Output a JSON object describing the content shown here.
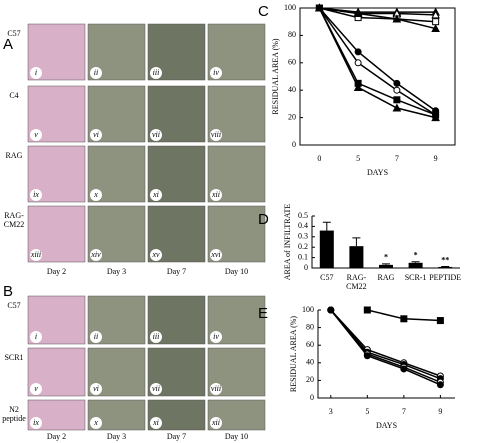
{
  "panel_a": {
    "letter": "A",
    "columns": [
      "Day 2",
      "Day 3",
      "Day 7",
      "Day 10"
    ],
    "rows": [
      {
        "label": [
          "C57"
        ],
        "numerals": [
          "i",
          "ii",
          "iii",
          "iv"
        ]
      },
      {
        "label": [
          "C4"
        ],
        "numerals": [
          "v",
          "vi",
          "vii",
          "viii"
        ]
      },
      {
        "label": [
          "RAG"
        ],
        "numerals": [
          "ix",
          "x",
          "xi",
          "xii"
        ]
      },
      {
        "label": [
          "RAG-",
          "CM22"
        ],
        "numerals": [
          "xiii",
          "xiv",
          "xv",
          "xvi"
        ]
      }
    ]
  },
  "panel_b": {
    "letter": "B",
    "columns": [
      "Day 2",
      "Day 3",
      "Day 7",
      "Day 10"
    ],
    "rows": [
      {
        "label": [
          "C57"
        ],
        "numerals": [
          "i",
          "ii",
          "iii",
          "iv"
        ]
      },
      {
        "label": [
          "SCR1"
        ],
        "numerals": [
          "v",
          "vi",
          "vii",
          "viii"
        ]
      },
      {
        "label": [
          "N2",
          "peptide"
        ],
        "numerals": [
          "ix",
          "x",
          "xi",
          "xii"
        ]
      }
    ]
  },
  "chart_data": [
    {
      "type": "line",
      "letter": "C",
      "y_label": "RESIDUAL AREA (%)",
      "x_label": "DAYS",
      "categories": [
        "0",
        "5",
        "7",
        "9"
      ],
      "ylim": [
        0,
        100
      ],
      "yticks": [
        0,
        20,
        40,
        60,
        80,
        100
      ],
      "series": [
        {
          "color": "#000000",
          "marker": "triangle",
          "values": [
            100,
            97,
            97,
            97
          ]
        },
        {
          "color": "#000000",
          "marker": "triangle-open",
          "values": [
            100,
            96,
            96,
            95
          ]
        },
        {
          "color": "#000000",
          "marker": "square-open",
          "values": [
            100,
            93,
            92,
            90
          ]
        },
        {
          "color": "#000000",
          "marker": "triangle",
          "values": [
            100,
            96,
            92,
            85
          ]
        },
        {
          "color": "#000000",
          "marker": "circle",
          "values": [
            100,
            68,
            45,
            25
          ]
        },
        {
          "color": "#000000",
          "marker": "circle-open",
          "values": [
            100,
            60,
            40,
            22
          ]
        },
        {
          "color": "#000000",
          "marker": "square",
          "values": [
            100,
            45,
            33,
            22
          ]
        },
        {
          "color": "#000000",
          "marker": "triangle",
          "values": [
            100,
            42,
            27,
            20
          ]
        }
      ]
    },
    {
      "type": "bar",
      "letter": "D",
      "y_label": "AREA of INFILTRATE",
      "categories": [
        [
          "C57"
        ],
        [
          "RAG-",
          "CM22"
        ],
        [
          "RAG"
        ],
        [
          "SCR-1"
        ],
        [
          "PEPTIDE"
        ]
      ],
      "values": [
        0.36,
        0.21,
        0.03,
        0.05,
        0.01
      ],
      "errors": [
        0.08,
        0.08,
        0.01,
        0.01,
        0.005
      ],
      "significance": [
        null,
        null,
        "*",
        "*",
        "**"
      ],
      "color": "#000000",
      "ylim": [
        0,
        0.5
      ],
      "yticks": [
        0,
        0.1,
        0.2,
        0.3,
        0.4,
        0.5
      ]
    },
    {
      "type": "line",
      "letter": "E",
      "y_label": "RESIDUAL AREA (%)",
      "x_label": "DAYS",
      "x": [
        3,
        5,
        7,
        9
      ],
      "xlim": [
        2.3,
        9.8
      ],
      "xticks": [
        3,
        5,
        7,
        9
      ],
      "ylim": [
        0,
        100
      ],
      "yticks": [
        0,
        20,
        40,
        60,
        80,
        100
      ],
      "series": [
        {
          "color": "#000000",
          "marker": "square",
          "values": [
            null,
            100,
            90,
            88
          ]
        },
        {
          "color": "#000000",
          "marker": "circle-open",
          "values": [
            100,
            55,
            40,
            25
          ]
        },
        {
          "color": "#000000",
          "marker": "circle",
          "values": [
            100,
            52,
            38,
            22
          ]
        },
        {
          "color": "#000000",
          "marker": "circle-open",
          "values": [
            100,
            50,
            35,
            18
          ]
        },
        {
          "color": "#000000",
          "marker": "circle",
          "values": [
            100,
            48,
            33,
            15
          ]
        }
      ]
    }
  ]
}
